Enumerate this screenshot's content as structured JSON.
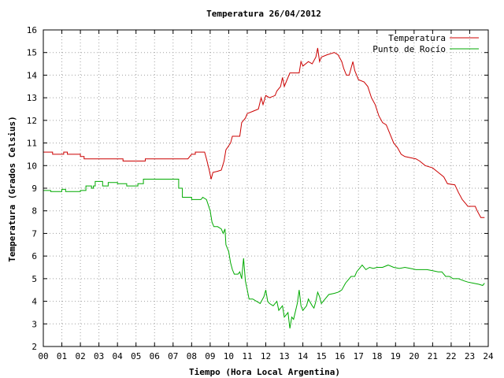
{
  "chart_data": {
    "type": "line",
    "title": "Temperatura 26/04/2012",
    "xlabel": "Tiempo (Hora Local Argentina)",
    "ylabel": "Temperatura (Grados Celsius)",
    "xlim": [
      0,
      24
    ],
    "ylim": [
      2,
      16
    ],
    "x_ticks": [
      "00",
      "01",
      "02",
      "03",
      "04",
      "05",
      "06",
      "07",
      "08",
      "09",
      "10",
      "11",
      "12",
      "13",
      "14",
      "15",
      "16",
      "17",
      "18",
      "19",
      "20",
      "21",
      "22",
      "23",
      "24"
    ],
    "y_ticks": [
      "2",
      "3",
      "4",
      "5",
      "6",
      "7",
      "8",
      "9",
      "10",
      "11",
      "12",
      "13",
      "14",
      "15",
      "16"
    ],
    "grid": true,
    "legend_position": "top-right",
    "series": [
      {
        "name": "Temperatura",
        "color": "#cc0000",
        "points": [
          [
            0.0,
            10.6
          ],
          [
            0.5,
            10.6
          ],
          [
            0.5,
            10.5
          ],
          [
            1.1,
            10.5
          ],
          [
            1.1,
            10.6
          ],
          [
            1.3,
            10.6
          ],
          [
            1.3,
            10.5
          ],
          [
            2.0,
            10.5
          ],
          [
            2.0,
            10.4
          ],
          [
            2.2,
            10.4
          ],
          [
            2.2,
            10.3
          ],
          [
            3.0,
            10.3
          ],
          [
            4.3,
            10.3
          ],
          [
            4.3,
            10.2
          ],
          [
            5.5,
            10.2
          ],
          [
            5.5,
            10.3
          ],
          [
            7.0,
            10.3
          ],
          [
            7.8,
            10.3
          ],
          [
            8.0,
            10.5
          ],
          [
            8.2,
            10.5
          ],
          [
            8.2,
            10.6
          ],
          [
            8.7,
            10.6
          ],
          [
            8.8,
            10.3
          ],
          [
            8.95,
            9.8
          ],
          [
            9.05,
            9.4
          ],
          [
            9.15,
            9.7
          ],
          [
            9.4,
            9.75
          ],
          [
            9.6,
            9.8
          ],
          [
            9.75,
            10.2
          ],
          [
            9.85,
            10.7
          ],
          [
            10.1,
            11.0
          ],
          [
            10.2,
            11.3
          ],
          [
            10.6,
            11.3
          ],
          [
            10.7,
            11.9
          ],
          [
            10.9,
            12.1
          ],
          [
            11.0,
            12.3
          ],
          [
            11.3,
            12.4
          ],
          [
            11.6,
            12.5
          ],
          [
            11.75,
            13.0
          ],
          [
            11.85,
            12.7
          ],
          [
            12.0,
            13.1
          ],
          [
            12.2,
            13.0
          ],
          [
            12.5,
            13.1
          ],
          [
            12.6,
            13.3
          ],
          [
            12.8,
            13.5
          ],
          [
            12.9,
            13.9
          ],
          [
            13.0,
            13.5
          ],
          [
            13.1,
            13.7
          ],
          [
            13.3,
            14.1
          ],
          [
            13.6,
            14.1
          ],
          [
            13.8,
            14.1
          ],
          [
            13.9,
            14.6
          ],
          [
            14.0,
            14.4
          ],
          [
            14.3,
            14.6
          ],
          [
            14.5,
            14.5
          ],
          [
            14.7,
            14.8
          ],
          [
            14.8,
            15.2
          ],
          [
            14.9,
            14.6
          ],
          [
            15.0,
            14.8
          ],
          [
            15.3,
            14.9
          ],
          [
            15.7,
            15.0
          ],
          [
            15.9,
            14.9
          ],
          [
            16.1,
            14.6
          ],
          [
            16.2,
            14.3
          ],
          [
            16.35,
            14.0
          ],
          [
            16.5,
            14.0
          ],
          [
            16.7,
            14.6
          ],
          [
            16.8,
            14.2
          ],
          [
            16.9,
            14.0
          ],
          [
            17.0,
            13.8
          ],
          [
            17.3,
            13.7
          ],
          [
            17.5,
            13.5
          ],
          [
            17.7,
            13.0
          ],
          [
            17.9,
            12.7
          ],
          [
            18.1,
            12.2
          ],
          [
            18.3,
            11.9
          ],
          [
            18.5,
            11.8
          ],
          [
            18.7,
            11.4
          ],
          [
            18.9,
            11.0
          ],
          [
            19.1,
            10.8
          ],
          [
            19.3,
            10.5
          ],
          [
            19.5,
            10.4
          ],
          [
            19.8,
            10.35
          ],
          [
            20.1,
            10.3
          ],
          [
            20.3,
            10.2
          ],
          [
            20.6,
            10.0
          ],
          [
            21.0,
            9.9
          ],
          [
            21.3,
            9.7
          ],
          [
            21.6,
            9.5
          ],
          [
            21.8,
            9.2
          ],
          [
            22.2,
            9.15
          ],
          [
            22.4,
            8.8
          ],
          [
            22.6,
            8.5
          ],
          [
            22.8,
            8.3
          ],
          [
            22.9,
            8.2
          ],
          [
            23.3,
            8.2
          ],
          [
            23.4,
            8.0
          ],
          [
            23.6,
            7.7
          ],
          [
            23.8,
            7.7
          ]
        ]
      },
      {
        "name": "Punto de Rocío",
        "color": "#00aa00",
        "points": [
          [
            0.0,
            8.9
          ],
          [
            0.4,
            8.9
          ],
          [
            0.4,
            8.85
          ],
          [
            1.0,
            8.85
          ],
          [
            1.0,
            8.95
          ],
          [
            1.2,
            8.95
          ],
          [
            1.2,
            8.85
          ],
          [
            2.0,
            8.85
          ],
          [
            2.0,
            8.9
          ],
          [
            2.3,
            8.9
          ],
          [
            2.3,
            9.1
          ],
          [
            2.6,
            9.1
          ],
          [
            2.6,
            9.0
          ],
          [
            2.7,
            9.0
          ],
          [
            2.7,
            9.1
          ],
          [
            2.8,
            9.1
          ],
          [
            2.8,
            9.3
          ],
          [
            3.2,
            9.3
          ],
          [
            3.2,
            9.1
          ],
          [
            3.5,
            9.1
          ],
          [
            3.5,
            9.25
          ],
          [
            4.0,
            9.25
          ],
          [
            4.0,
            9.2
          ],
          [
            4.5,
            9.2
          ],
          [
            4.5,
            9.1
          ],
          [
            5.1,
            9.1
          ],
          [
            5.1,
            9.2
          ],
          [
            5.4,
            9.2
          ],
          [
            5.4,
            9.4
          ],
          [
            6.0,
            9.4
          ],
          [
            7.3,
            9.4
          ],
          [
            7.3,
            9.0
          ],
          [
            7.5,
            9.0
          ],
          [
            7.5,
            8.6
          ],
          [
            8.0,
            8.6
          ],
          [
            8.0,
            8.5
          ],
          [
            8.5,
            8.5
          ],
          [
            8.6,
            8.6
          ],
          [
            8.8,
            8.5
          ],
          [
            9.0,
            8.0
          ],
          [
            9.1,
            7.5
          ],
          [
            9.2,
            7.3
          ],
          [
            9.4,
            7.3
          ],
          [
            9.6,
            7.2
          ],
          [
            9.7,
            7.0
          ],
          [
            9.8,
            7.2
          ],
          [
            9.85,
            6.5
          ],
          [
            10.0,
            6.2
          ],
          [
            10.1,
            5.7
          ],
          [
            10.2,
            5.4
          ],
          [
            10.3,
            5.2
          ],
          [
            10.5,
            5.2
          ],
          [
            10.6,
            5.3
          ],
          [
            10.7,
            5.0
          ],
          [
            10.8,
            5.9
          ],
          [
            10.9,
            4.9
          ],
          [
            11.0,
            4.5
          ],
          [
            11.1,
            4.1
          ],
          [
            11.3,
            4.1
          ],
          [
            11.5,
            4.0
          ],
          [
            11.7,
            3.9
          ],
          [
            11.9,
            4.2
          ],
          [
            12.0,
            4.5
          ],
          [
            12.1,
            4.0
          ],
          [
            12.2,
            3.9
          ],
          [
            12.4,
            3.8
          ],
          [
            12.6,
            4.0
          ],
          [
            12.7,
            3.6
          ],
          [
            12.9,
            3.8
          ],
          [
            13.0,
            3.3
          ],
          [
            13.2,
            3.5
          ],
          [
            13.3,
            2.8
          ],
          [
            13.4,
            3.3
          ],
          [
            13.5,
            3.2
          ],
          [
            13.7,
            3.9
          ],
          [
            13.8,
            4.5
          ],
          [
            13.9,
            3.8
          ],
          [
            14.0,
            3.6
          ],
          [
            14.2,
            3.8
          ],
          [
            14.3,
            4.1
          ],
          [
            14.5,
            3.8
          ],
          [
            14.6,
            3.7
          ],
          [
            14.7,
            4.0
          ],
          [
            14.8,
            4.4
          ],
          [
            14.9,
            4.2
          ],
          [
            15.0,
            3.9
          ],
          [
            15.2,
            4.1
          ],
          [
            15.4,
            4.3
          ],
          [
            15.7,
            4.35
          ],
          [
            15.9,
            4.4
          ],
          [
            16.1,
            4.5
          ],
          [
            16.3,
            4.8
          ],
          [
            16.5,
            5.0
          ],
          [
            16.6,
            5.1
          ],
          [
            16.8,
            5.1
          ],
          [
            16.9,
            5.3
          ],
          [
            17.0,
            5.4
          ],
          [
            17.2,
            5.6
          ],
          [
            17.4,
            5.4
          ],
          [
            17.6,
            5.5
          ],
          [
            17.8,
            5.45
          ],
          [
            18.0,
            5.5
          ],
          [
            18.3,
            5.5
          ],
          [
            18.6,
            5.6
          ],
          [
            18.9,
            5.5
          ],
          [
            19.2,
            5.45
          ],
          [
            19.5,
            5.5
          ],
          [
            19.8,
            5.45
          ],
          [
            20.1,
            5.4
          ],
          [
            20.4,
            5.4
          ],
          [
            20.7,
            5.4
          ],
          [
            21.0,
            5.35
          ],
          [
            21.3,
            5.3
          ],
          [
            21.5,
            5.3
          ],
          [
            21.7,
            5.1
          ],
          [
            21.9,
            5.1
          ],
          [
            22.1,
            5.0
          ],
          [
            22.4,
            5.0
          ],
          [
            22.7,
            4.9
          ],
          [
            22.9,
            4.85
          ],
          [
            23.2,
            4.8
          ],
          [
            23.5,
            4.75
          ],
          [
            23.7,
            4.7
          ],
          [
            23.8,
            4.8
          ]
        ]
      }
    ]
  }
}
